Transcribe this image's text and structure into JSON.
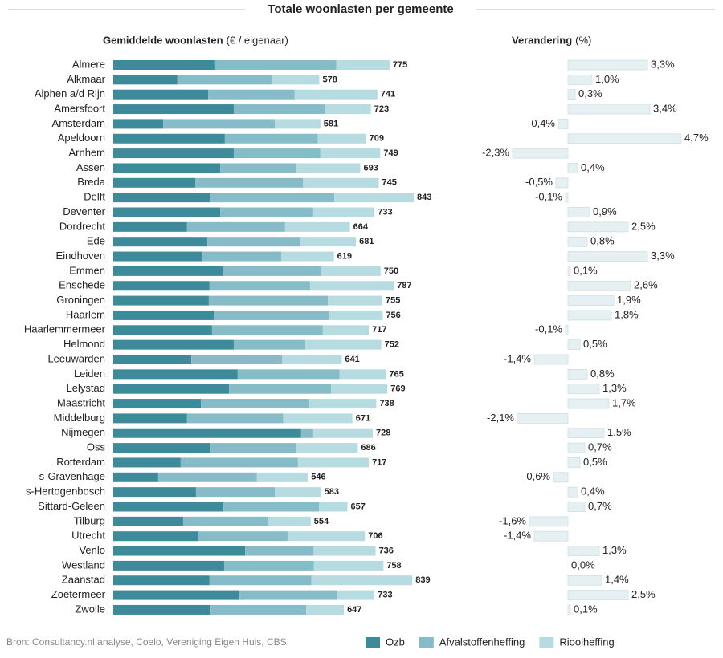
{
  "title": "Totale woonlasten per gemeente",
  "source": "Bron: Consultancy.nl analyse, Coelo, Vereniging Eigen Huis, CBS",
  "chart_data": [
    {
      "type": "stacked-bar",
      "title": "Gemiddelde woonlasten",
      "unit": "(€ / eigenaar)",
      "categories": [
        "Almere",
        "Alkmaar",
        "Alphen a/d Rijn",
        "Amersfoort",
        "Amsterdam",
        "Apeldoorn",
        "Arnhem",
        "Assen",
        "Breda",
        "Delft",
        "Deventer",
        "Dordrecht",
        "Ede",
        "Eindhoven",
        "Emmen",
        "Enschede",
        "Groningen",
        "Haarlem",
        "Haarlemmermeer",
        "Helmond",
        "Leeuwarden",
        "Leiden",
        "Lelystad",
        "Maastricht",
        "Middelburg",
        "Nijmegen",
        "Oss",
        "Rotterdam",
        "s-Gravenhage",
        "s-Hertogenbosch",
        "Sittard-Geleen",
        "Tilburg",
        "Utrecht",
        "Venlo",
        "Westland",
        "Zaanstad",
        "Zoetermeer",
        "Zwolle"
      ],
      "series": [
        {
          "name": "Ozb",
          "color": "#3d8a9a",
          "values": [
            286,
            180,
            266,
            338,
            140,
            313,
            338,
            300,
            230,
            273,
            300,
            207,
            264,
            248,
            307,
            270,
            268,
            282,
            277,
            338,
            219,
            349,
            325,
            246,
            207,
            527,
            273,
            189,
            126,
            232,
            309,
            196,
            237,
            370,
            311,
            270,
            354,
            273
          ]
        },
        {
          "name": "Afvalstoffenheffing",
          "color": "#86bcc7",
          "values": [
            340,
            264,
            243,
            257,
            313,
            261,
            243,
            212,
            302,
            347,
            261,
            275,
            261,
            223,
            275,
            282,
            334,
            322,
            311,
            201,
            255,
            286,
            286,
            304,
            270,
            34,
            241,
            329,
            277,
            221,
            268,
            239,
            252,
            192,
            252,
            286,
            273,
            268
          ]
        },
        {
          "name": "Rioolheffing",
          "color": "#b6dbe0",
          "values": [
            149,
            134,
            232,
            128,
            128,
            135,
            168,
            181,
            213,
            223,
            172,
            182,
            156,
            148,
            168,
            235,
            153,
            152,
            129,
            213,
            167,
            130,
            158,
            188,
            194,
            167,
            172,
            199,
            143,
            130,
            80,
            119,
            217,
            174,
            195,
            283,
            106,
            106
          ]
        }
      ],
      "totals": [
        775,
        578,
        741,
        723,
        581,
        709,
        749,
        693,
        745,
        843,
        733,
        664,
        681,
        619,
        750,
        787,
        755,
        756,
        717,
        752,
        641,
        765,
        769,
        738,
        671,
        728,
        686,
        717,
        546,
        583,
        657,
        554,
        706,
        736,
        758,
        839,
        733,
        647
      ]
    },
    {
      "type": "change-bar",
      "title": "Verandering",
      "unit": "(%)",
      "color": "#e6f0f2",
      "values": [
        3.3,
        1.0,
        0.3,
        3.4,
        -0.4,
        4.7,
        -2.3,
        0.4,
        -0.5,
        -0.1,
        0.9,
        2.5,
        0.8,
        3.3,
        0.1,
        2.6,
        1.9,
        1.8,
        -0.1,
        0.5,
        -1.4,
        0.8,
        1.3,
        1.7,
        -2.1,
        1.5,
        0.7,
        0.5,
        -0.6,
        0.4,
        0.7,
        -1.6,
        -1.4,
        1.3,
        0.0,
        1.4,
        2.5,
        0.1
      ],
      "value_labels": [
        "3,3%",
        "1,0%",
        "0,3%",
        "3,4%",
        "-0,4%",
        "4,7%",
        "-2,3%",
        "0,4%",
        "-0,5%",
        "-0,1%",
        "0,9%",
        "2,5%",
        "0,8%",
        "3,3%",
        "0,1%",
        "2,6%",
        "1,9%",
        "1,8%",
        "-0,1%",
        "0,5%",
        "-1,4%",
        "0,8%",
        "1,3%",
        "1,7%",
        "-2,1%",
        "1,5%",
        "0,7%",
        "0,5%",
        "-0,6%",
        "0,4%",
        "0,7%",
        "-1,6%",
        "-1,4%",
        "1,3%",
        "0,0%",
        "1,4%",
        "2,5%",
        "0,1%"
      ]
    }
  ]
}
